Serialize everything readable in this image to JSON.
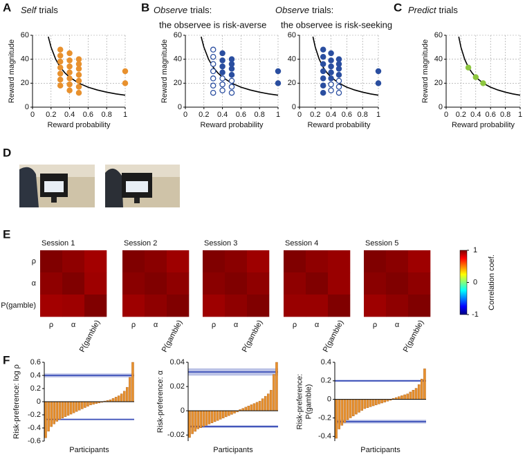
{
  "panels": [
    "A",
    "B",
    "C",
    "D",
    "E",
    "F"
  ],
  "chart_data": [
    {
      "type": "scatter",
      "title_em": "Self",
      "title": "trials",
      "xlabel": "Reward probability",
      "ylabel": "Reward magnitude",
      "xlim": [
        0,
        1
      ],
      "ylim": [
        0,
        60
      ],
      "xticks": [
        0,
        0.2,
        0.4,
        0.6,
        0.8,
        1
      ],
      "yticks": [
        0,
        20,
        40,
        60
      ],
      "grid": true,
      "series": [
        {
          "kind": "line",
          "color": "#000000",
          "x": [
            0.17,
            0.2,
            0.25,
            0.3,
            0.35,
            0.4,
            0.5,
            0.6,
            0.7,
            0.8,
            0.9,
            1
          ],
          "values": [
            58.8,
            50,
            40,
            33.3,
            28.6,
            25,
            20,
            16.7,
            14.3,
            12.5,
            11.1,
            10
          ]
        },
        {
          "kind": "marker",
          "color": "#e8912e",
          "hollow": false,
          "x": [
            0.3,
            0.3,
            0.3,
            0.3,
            0.3,
            0.3,
            0.3,
            0.4,
            0.4,
            0.4,
            0.4,
            0.4,
            0.4,
            0.4,
            0.5,
            0.5,
            0.5,
            0.5,
            0.5,
            0.5,
            0.5,
            1,
            1
          ],
          "values": [
            18,
            23,
            28,
            33,
            38,
            43,
            48,
            14,
            19,
            24,
            29,
            34,
            39,
            45,
            12,
            17,
            22,
            27,
            32,
            36,
            40,
            20,
            30
          ]
        }
      ]
    },
    {
      "type": "scatter",
      "title_em": "Observe",
      "title": "trials:",
      "subtitle": "the observee is risk-averse",
      "xlabel": "Reward probability",
      "ylabel": "Reward magnitude",
      "xlim": [
        0,
        1
      ],
      "ylim": [
        0,
        60
      ],
      "xticks": [
        0,
        0.2,
        0.4,
        0.6,
        0.8,
        1
      ],
      "yticks": [
        0,
        20,
        40,
        60
      ],
      "grid": true,
      "series": [
        {
          "kind": "line",
          "color": "#000000",
          "x": [
            0.17,
            0.2,
            0.25,
            0.3,
            0.35,
            0.4,
            0.5,
            0.6,
            0.7,
            0.8,
            0.9,
            1
          ],
          "values": [
            58.8,
            50,
            40,
            33.3,
            28.6,
            25,
            20,
            16.7,
            14.3,
            12.5,
            11.1,
            10
          ]
        },
        {
          "kind": "marker",
          "color": "#2a4ea0",
          "hollow": true,
          "x": [
            0.3,
            0.3,
            0.3,
            0.3,
            0.3,
            0.3,
            0.3,
            0.4,
            0.4,
            0.4,
            0.5,
            0.5,
            0.5
          ],
          "values": [
            12,
            18,
            24,
            30,
            36,
            42,
            48,
            14,
            19,
            24,
            12,
            17,
            22
          ]
        },
        {
          "kind": "marker",
          "color": "#2a4ea0",
          "hollow": false,
          "x": [
            0.4,
            0.4,
            0.4,
            0.4,
            0.5,
            0.5,
            0.5,
            0.5,
            1,
            1
          ],
          "values": [
            29,
            34,
            39,
            45,
            27,
            32,
            36,
            40,
            20,
            30
          ]
        }
      ]
    },
    {
      "type": "scatter",
      "title_em": "Observe",
      "title": "trials:",
      "subtitle": "the observee is risk-seeking",
      "xlabel": "Reward probability",
      "xlim": [
        0,
        1
      ],
      "ylim": [
        0,
        60
      ],
      "xticks": [
        0,
        0.2,
        0.4,
        0.6,
        0.8,
        1
      ],
      "yticks": [
        0,
        20,
        40,
        60
      ],
      "grid": true,
      "series": [
        {
          "kind": "line",
          "color": "#000000",
          "x": [
            0.17,
            0.2,
            0.25,
            0.3,
            0.35,
            0.4,
            0.5,
            0.6,
            0.7,
            0.8,
            0.9,
            1
          ],
          "values": [
            58.8,
            50,
            40,
            33.3,
            28.6,
            25,
            20,
            16.7,
            14.3,
            12.5,
            11.1,
            10
          ]
        },
        {
          "kind": "marker",
          "color": "#2a4ea0",
          "hollow": true,
          "x": [
            0.4,
            0.4,
            0.5,
            0.5,
            0.5
          ],
          "values": [
            14,
            19,
            12,
            17,
            22
          ]
        },
        {
          "kind": "marker",
          "color": "#2a4ea0",
          "hollow": false,
          "x": [
            0.3,
            0.3,
            0.3,
            0.3,
            0.3,
            0.3,
            0.3,
            0.4,
            0.4,
            0.4,
            0.4,
            0.4,
            0.5,
            0.5,
            0.5,
            0.5,
            1,
            1
          ],
          "values": [
            12,
            18,
            24,
            30,
            36,
            42,
            48,
            24,
            29,
            34,
            39,
            45,
            27,
            32,
            36,
            40,
            20,
            30
          ]
        }
      ]
    },
    {
      "type": "scatter",
      "title_em": "Predict",
      "title": "trials",
      "xlabel": "Reward probability",
      "ylabel": "Reward magnitude",
      "xlim": [
        0,
        1
      ],
      "ylim": [
        0,
        60
      ],
      "xticks": [
        0,
        0.2,
        0.4,
        0.6,
        0.8,
        1
      ],
      "yticks": [
        0,
        20,
        40,
        60
      ],
      "grid": true,
      "series": [
        {
          "kind": "line",
          "color": "#000000",
          "x": [
            0.17,
            0.2,
            0.25,
            0.3,
            0.35,
            0.4,
            0.5,
            0.6,
            0.7,
            0.8,
            0.9,
            1
          ],
          "values": [
            58.8,
            50,
            40,
            33.3,
            28.6,
            25,
            20,
            16.7,
            14.3,
            12.5,
            11.1,
            10
          ]
        },
        {
          "kind": "marker",
          "color": "#8dc63f",
          "hollow": false,
          "x": [
            0.3,
            0.4,
            0.5
          ],
          "values": [
            33,
            25,
            20
          ]
        }
      ]
    },
    {
      "type": "heatmap",
      "title": "Session 1",
      "colormap": "jet",
      "zlim": [
        -1,
        1
      ],
      "rows": [
        "ρ",
        "α",
        "P(gamble)"
      ],
      "columns": [
        "ρ",
        "α",
        "P(gamble)"
      ],
      "values": [
        [
          1,
          0.97,
          0.93
        ],
        [
          0.97,
          1,
          0.94
        ],
        [
          0.93,
          0.94,
          1
        ]
      ]
    },
    {
      "type": "heatmap",
      "title": "Session 2",
      "colormap": "jet",
      "zlim": [
        -1,
        1
      ],
      "columns": [
        "ρ",
        "α",
        "P(gamble)"
      ],
      "values": [
        [
          1,
          0.98,
          0.94
        ],
        [
          0.98,
          1,
          0.97
        ],
        [
          0.94,
          0.97,
          1
        ]
      ]
    },
    {
      "type": "heatmap",
      "title": "Session 3",
      "colormap": "jet",
      "zlim": [
        -1,
        1
      ],
      "columns": [
        "ρ",
        "α",
        "P(gamble)"
      ],
      "values": [
        [
          1,
          0.98,
          0.94
        ],
        [
          0.98,
          1,
          0.97
        ],
        [
          0.94,
          0.97,
          1
        ]
      ]
    },
    {
      "type": "heatmap",
      "title": "Session 4",
      "colormap": "jet",
      "zlim": [
        -1,
        1
      ],
      "columns": [
        "ρ",
        "α",
        "P(gamble)"
      ],
      "values": [
        [
          1,
          0.97,
          0.95
        ],
        [
          0.97,
          1,
          0.95
        ],
        [
          0.95,
          0.95,
          1
        ]
      ]
    },
    {
      "type": "heatmap",
      "title": "Session 5",
      "colormap": "jet",
      "zlim": [
        -1,
        1
      ],
      "columns": [
        "ρ",
        "α",
        "P(gamble)"
      ],
      "values": [
        [
          1,
          0.98,
          0.94
        ],
        [
          0.98,
          1,
          0.97
        ],
        [
          0.94,
          0.97,
          1
        ]
      ]
    },
    {
      "type": "colorbar",
      "label": "Correlation coef.",
      "colormap": "jet",
      "zlim": [
        -1,
        1
      ],
      "zticks": [
        -1,
        0,
        1
      ]
    },
    {
      "type": "bar",
      "ylabel": "Risk-preference: log ρ",
      "xlabel": "Participants",
      "color": "#e8912e",
      "ylim": [
        -0.6,
        0.6
      ],
      "yticks": [
        -0.6,
        -0.4,
        -0.2,
        0,
        0.2,
        0.4,
        0.6
      ],
      "band_color": "#3b4fb8",
      "bands": [
        {
          "center": 0.4,
          "low": 0.37,
          "high": 0.43
        },
        {
          "center": -0.27,
          "low": -0.28,
          "high": -0.26
        }
      ],
      "values": [
        -0.55,
        -0.45,
        -0.38,
        -0.34,
        -0.3,
        -0.27,
        -0.25,
        -0.23,
        -0.21,
        -0.19,
        -0.17,
        -0.15,
        -0.13,
        -0.11,
        -0.09,
        -0.07,
        -0.05,
        -0.04,
        -0.03,
        -0.02,
        -0.01,
        0.01,
        0.02,
        0.03,
        0.05,
        0.07,
        0.09,
        0.12,
        0.16,
        0.22,
        0.37,
        0.6
      ]
    },
    {
      "type": "bar",
      "ylabel": "Risk-preference: α",
      "xlabel": "Participants",
      "color": "#e8912e",
      "ylim": [
        -0.025,
        0.04
      ],
      "yticks": [
        -0.02,
        0,
        0.02,
        0.04
      ],
      "band_color": "#3b4fb8",
      "bands": [
        {
          "center": 0.032,
          "low": 0.029,
          "high": 0.035
        },
        {
          "center": -0.013,
          "low": -0.014,
          "high": -0.012
        }
      ],
      "values": [
        -0.022,
        -0.019,
        -0.017,
        -0.015,
        -0.014,
        -0.013,
        -0.012,
        -0.011,
        -0.01,
        -0.009,
        -0.008,
        -0.007,
        -0.006,
        -0.005,
        -0.004,
        -0.003,
        -0.002,
        -0.001,
        0.001,
        0.002,
        0.003,
        0.004,
        0.005,
        0.006,
        0.007,
        0.008,
        0.01,
        0.012,
        0.014,
        0.017,
        0.03,
        0.04
      ]
    },
    {
      "type": "bar",
      "ylabel": [
        "Risk-preference:",
        "P(gamble)"
      ],
      "xlabel": "Participants",
      "color": "#e8912e",
      "ylim": [
        -0.45,
        0.4
      ],
      "yticks": [
        -0.4,
        -0.2,
        0,
        0.2,
        0.4
      ],
      "band_color": "#3b4fb8",
      "bands": [
        {
          "center": 0.2,
          "low": 0.19,
          "high": 0.21
        },
        {
          "center": -0.24,
          "low": -0.26,
          "high": -0.22
        }
      ],
      "values": [
        -0.42,
        -0.32,
        -0.28,
        -0.25,
        -0.22,
        -0.2,
        -0.18,
        -0.16,
        -0.14,
        -0.12,
        -0.1,
        -0.09,
        -0.08,
        -0.07,
        -0.06,
        -0.05,
        -0.04,
        -0.03,
        -0.02,
        -0.01,
        0.01,
        0.02,
        0.03,
        0.04,
        0.05,
        0.06,
        0.08,
        0.1,
        0.12,
        0.16,
        0.22,
        0.33
      ]
    }
  ]
}
